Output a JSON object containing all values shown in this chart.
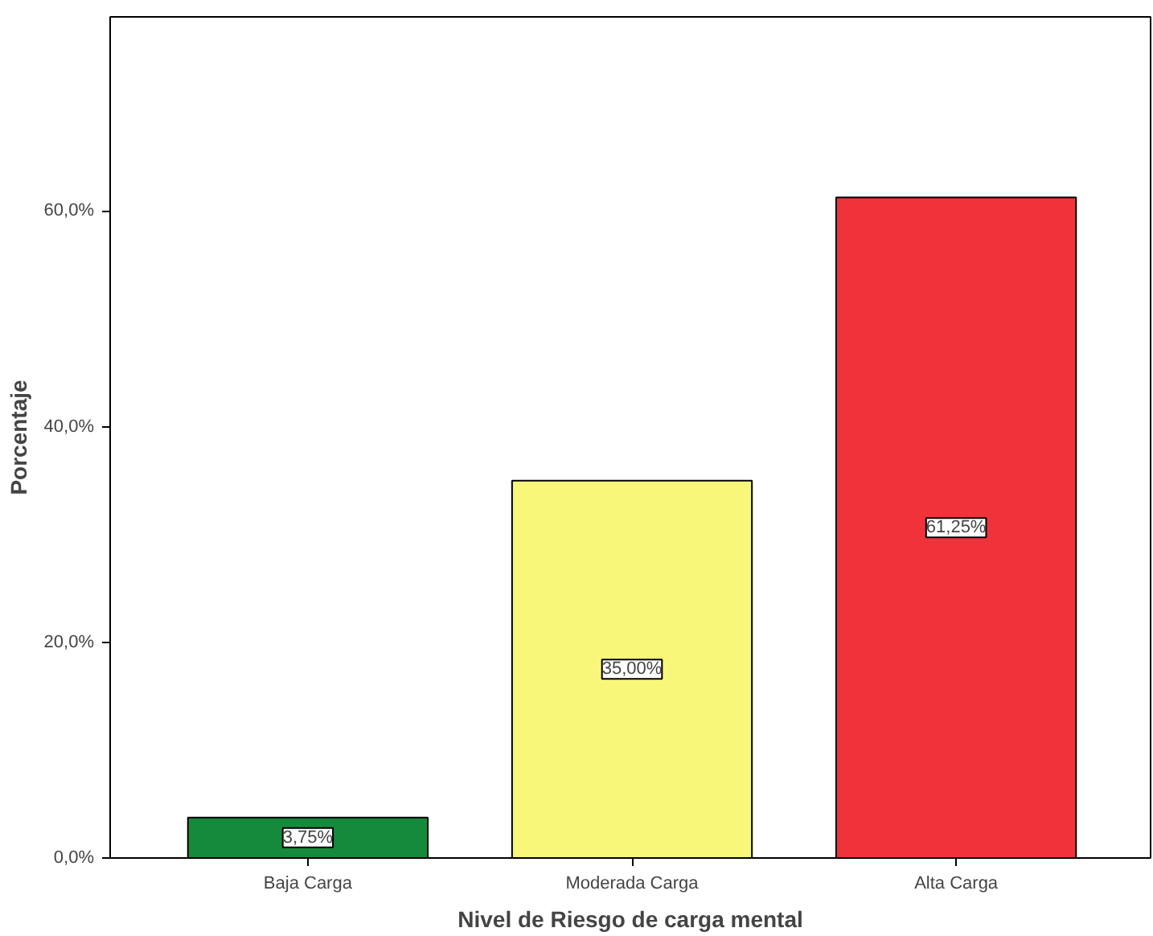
{
  "chart_data": {
    "type": "bar",
    "xlabel": "Nivel de Riesgo de carga mental",
    "ylabel": "Porcentaje",
    "categories": [
      "Baja Carga",
      "Moderada Carga",
      "Alta Carga"
    ],
    "values": [
      3.75,
      35.0,
      61.25
    ],
    "colors": [
      "#168a3c",
      "#f9f77a",
      "#f0333b"
    ],
    "value_labels": [
      "3,75%",
      "35,00%",
      "61,25%"
    ],
    "ylim": [
      0,
      78
    ],
    "yticks": [
      {
        "value": 0,
        "label": "0,0%"
      },
      {
        "value": 20,
        "label": "20,0%"
      },
      {
        "value": 40,
        "label": "40,0%"
      },
      {
        "value": 60,
        "label": "60,0%"
      }
    ],
    "grid": false
  }
}
